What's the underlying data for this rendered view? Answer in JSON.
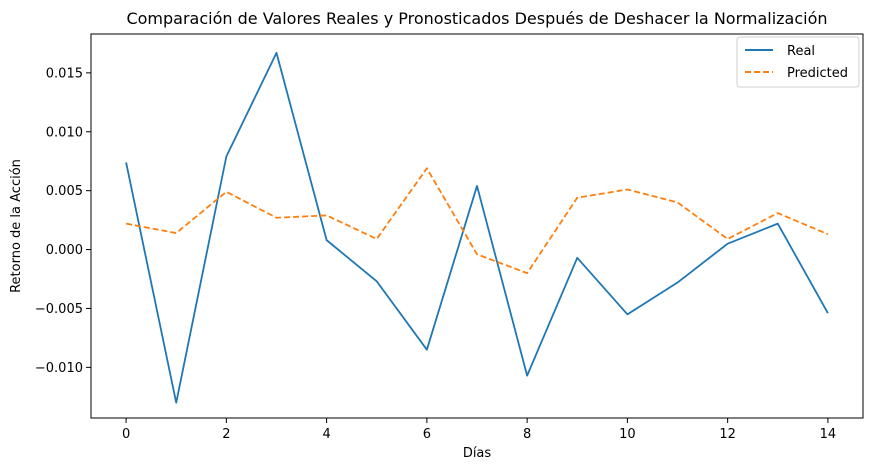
{
  "chart_data": {
    "type": "line",
    "title": "Comparación de Valores Reales y Pronosticados Después de Deshacer la Normalización",
    "xlabel": "Días",
    "ylabel": "Retorno de la Acción",
    "x": [
      0,
      1,
      2,
      3,
      4,
      5,
      6,
      7,
      8,
      9,
      10,
      11,
      12,
      13,
      14
    ],
    "xlim": [
      -0.7,
      14.7
    ],
    "ylim": [
      -0.0143,
      0.0183
    ],
    "xticks": [
      0,
      2,
      4,
      6,
      8,
      10,
      12,
      14
    ],
    "xtick_labels": [
      "0",
      "2",
      "4",
      "6",
      "8",
      "10",
      "12",
      "14"
    ],
    "yticks": [
      -0.01,
      -0.005,
      0.0,
      0.005,
      0.01,
      0.015
    ],
    "ytick_labels": [
      "−0.010",
      "−0.005",
      "0.000",
      "0.005",
      "0.010",
      "0.015"
    ],
    "grid": false,
    "legend_position": "top-right",
    "series": [
      {
        "name": "Real",
        "color": "#1f77b4",
        "linestyle": "solid",
        "values": [
          0.0074,
          -0.013,
          0.0079,
          0.0167,
          0.0008,
          -0.0027,
          -0.0085,
          0.0054,
          -0.0107,
          -0.0007,
          -0.0055,
          -0.0028,
          0.0005,
          0.0022,
          -0.0054
        ]
      },
      {
        "name": "Predicted",
        "color": "#ff7f0e",
        "linestyle": "dashed",
        "values": [
          0.0022,
          0.0014,
          0.0049,
          0.0027,
          0.0029,
          0.0009,
          0.0069,
          -0.0004,
          -0.002,
          0.0044,
          0.0051,
          0.004,
          0.0009,
          0.0031,
          0.0013
        ]
      }
    ]
  }
}
